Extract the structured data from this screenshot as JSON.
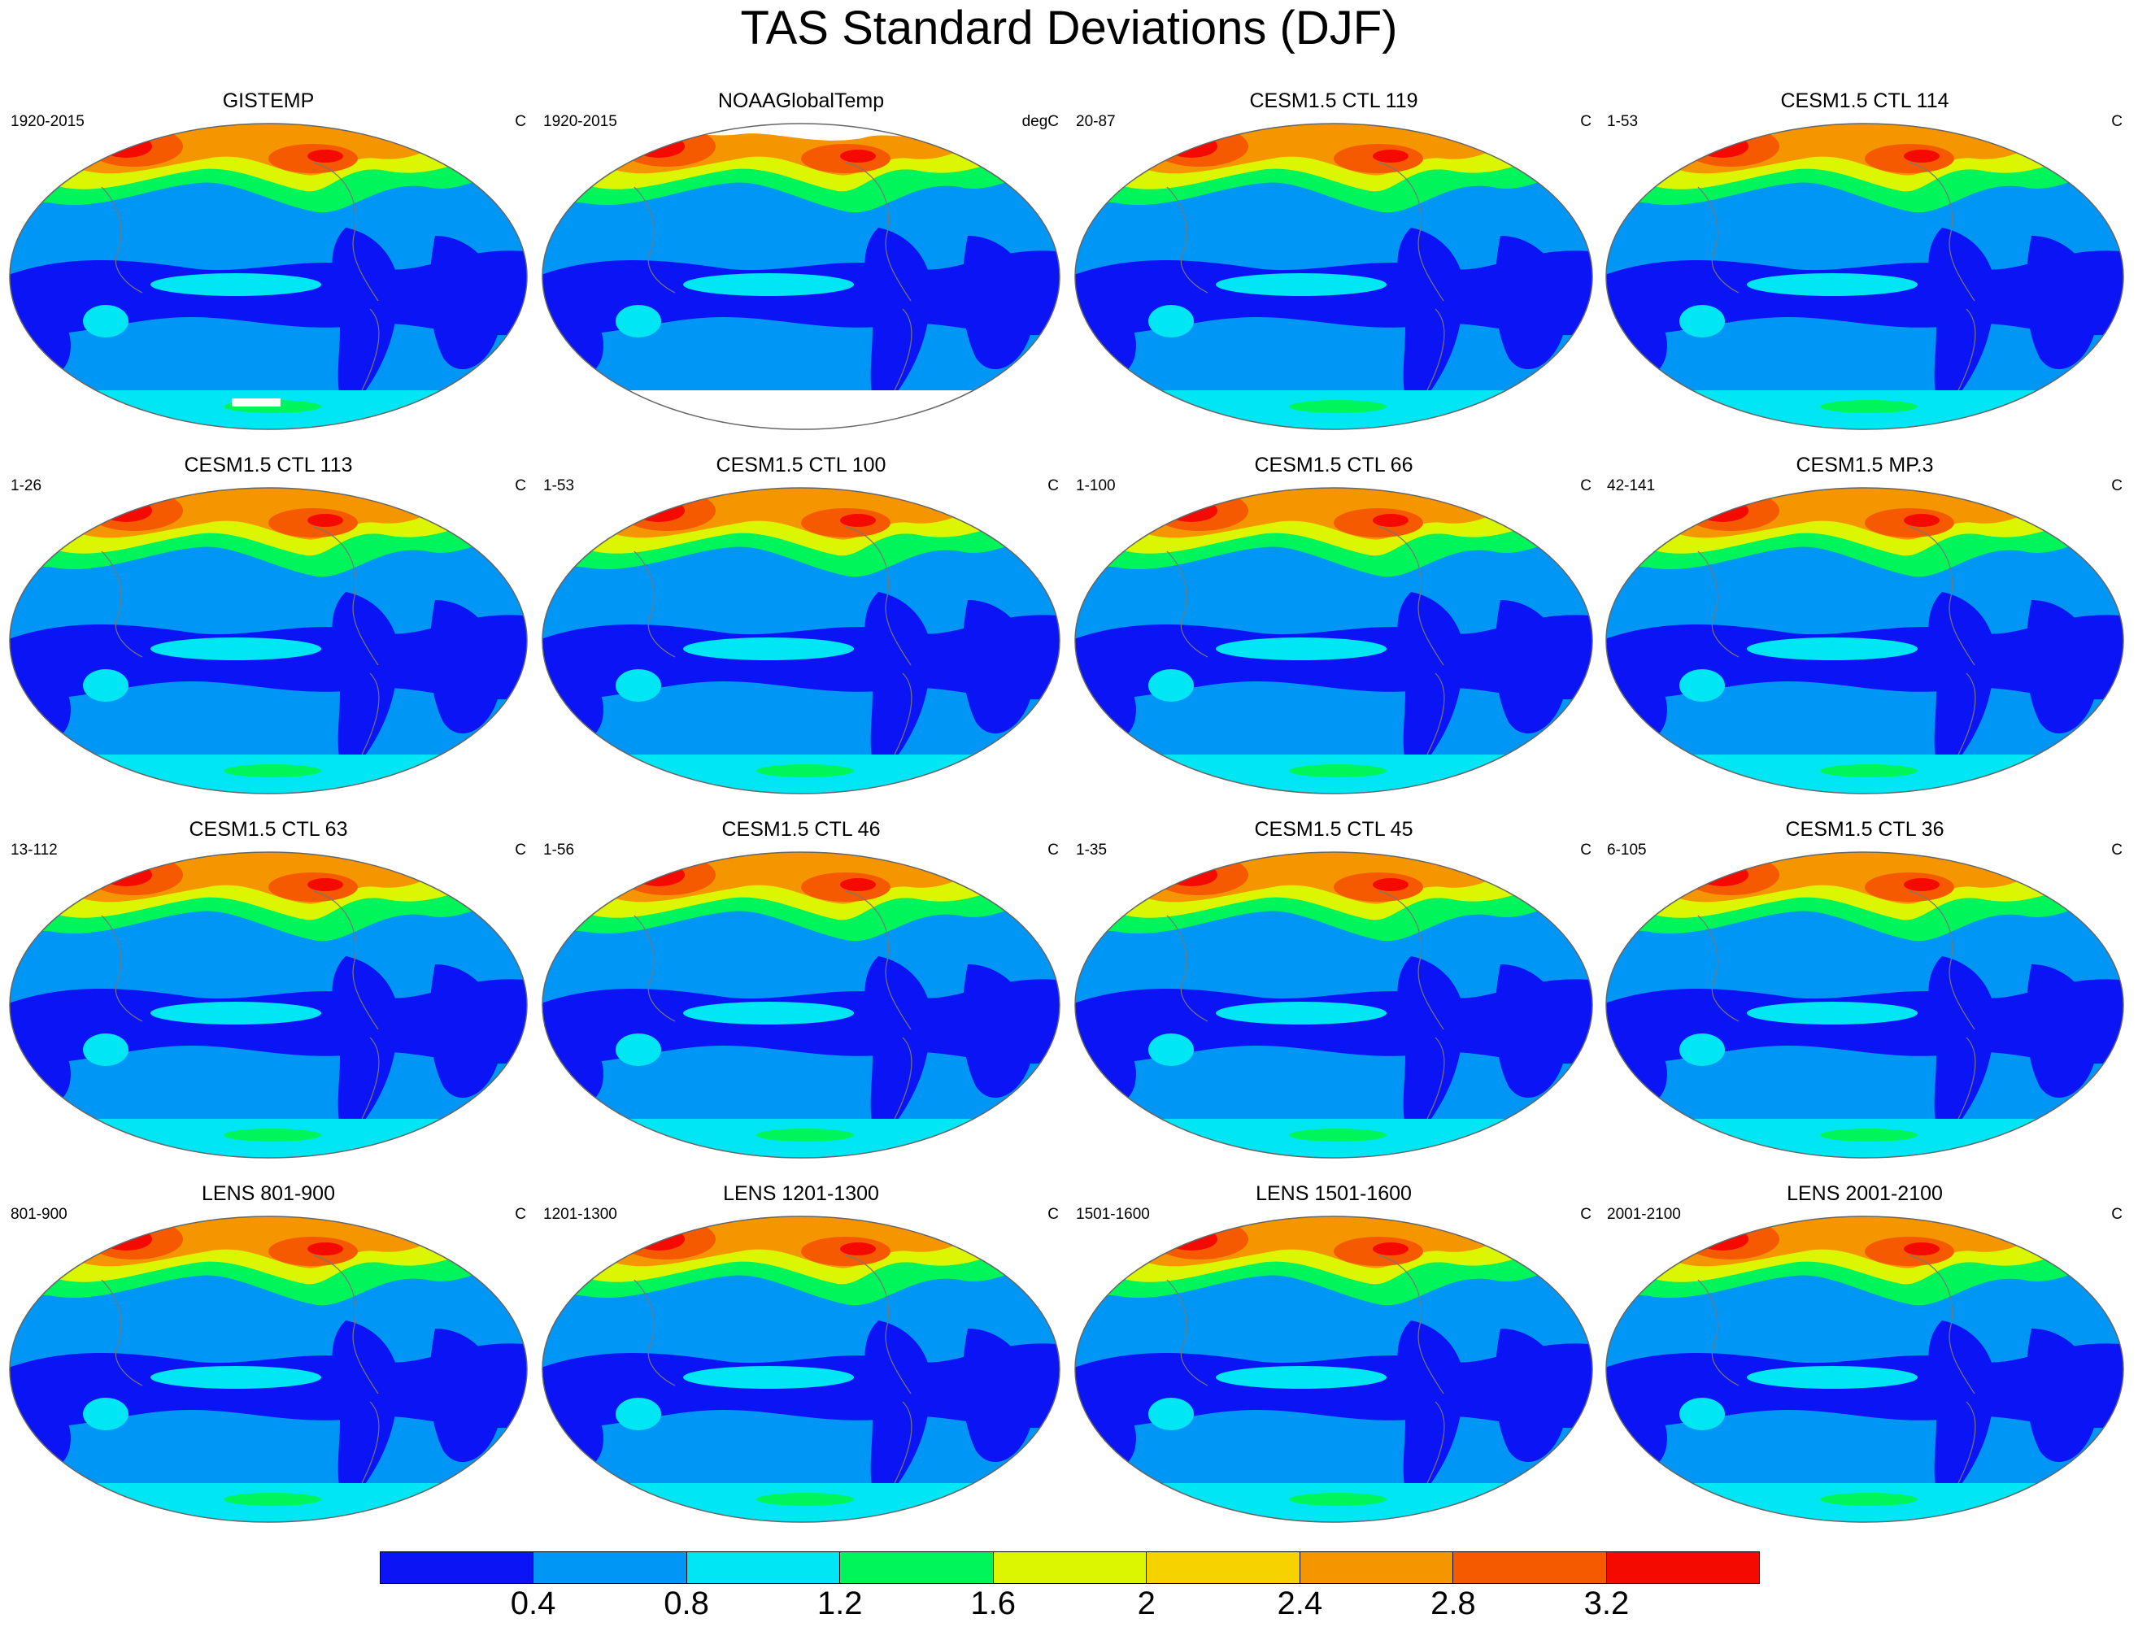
{
  "title": "TAS Standard Deviations (DJF)",
  "panels": [
    {
      "title": "GISTEMP",
      "period": "1920-2015",
      "units": "C",
      "observed": true
    },
    {
      "title": "NOAAGlobalTemp",
      "period": "1920-2015",
      "units": "degC",
      "observed": true
    },
    {
      "title": "CESM1.5 CTL 119",
      "period": "20-87",
      "units": "C"
    },
    {
      "title": "CESM1.5 CTL 114",
      "period": "1-53",
      "units": "C"
    },
    {
      "title": "CESM1.5 CTL 113",
      "period": "1-26",
      "units": "C"
    },
    {
      "title": "CESM1.5 CTL 100",
      "period": "1-53",
      "units": "C"
    },
    {
      "title": "CESM1.5 CTL 66",
      "period": "1-100",
      "units": "C"
    },
    {
      "title": "CESM1.5 MP.3",
      "period": "42-141",
      "units": "C"
    },
    {
      "title": "CESM1.5 CTL 63",
      "period": "13-112",
      "units": "C"
    },
    {
      "title": "CESM1.5 CTL 46",
      "period": "1-56",
      "units": "C"
    },
    {
      "title": "CESM1.5 CTL 45",
      "period": "1-35",
      "units": "C"
    },
    {
      "title": "CESM1.5 CTL 36",
      "period": "6-105",
      "units": "C"
    },
    {
      "title": "LENS 801-900",
      "period": "801-900",
      "units": "C"
    },
    {
      "title": "LENS 1201-1300",
      "period": "1201-1300",
      "units": "C"
    },
    {
      "title": "LENS 1501-1600",
      "period": "1501-1600",
      "units": "C"
    },
    {
      "title": "LENS 2001-2100",
      "period": "2001-2100",
      "units": "C"
    }
  ],
  "colorbar": {
    "colors": [
      "#0a14f5",
      "#0096f5",
      "#00e6f5",
      "#00f55a",
      "#dcf500",
      "#f5d200",
      "#f59600",
      "#f55a00",
      "#f50a00"
    ],
    "ticks": [
      "0.4",
      "0.8",
      "1.2",
      "1.6",
      "2",
      "2.4",
      "2.8",
      "3.2"
    ]
  }
}
